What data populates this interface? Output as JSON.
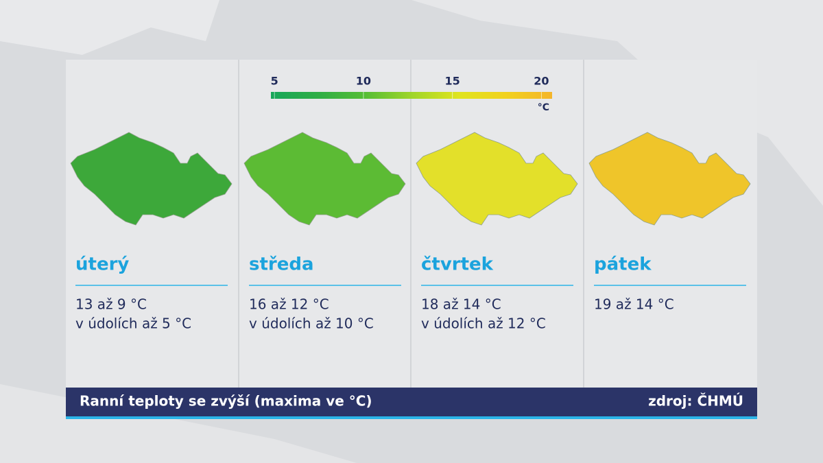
{
  "legend": {
    "lim": [
      4.8,
      20.6
    ],
    "ticks": [
      5,
      10,
      15,
      20
    ],
    "unit": "°C",
    "colors": [
      "#17a65a",
      "#2fae46",
      "#55bd35",
      "#9fd52a",
      "#dfe41f",
      "#f1d21f",
      "#f4b52a"
    ]
  },
  "panels": [
    {
      "day": "úterý",
      "lines": [
        "13 až 9 °C",
        "v údolích až 5 °C"
      ],
      "color": "#3da83a"
    },
    {
      "day": "středa",
      "lines": [
        "16 až 12 °C",
        "v údolích až 10 °C"
      ],
      "color": "#5cbb34"
    },
    {
      "day": "čtvrtek",
      "lines": [
        "18 až 14 °C",
        "v údolích až 12 °C"
      ],
      "color": "#e3e02a"
    },
    {
      "day": "pátek",
      "lines": [
        "19 až 14 °C"
      ],
      "color": "#efc52a"
    }
  ],
  "footer": {
    "title": "Ranní teploty se zvýší (maxima ve °C)",
    "source": "zdroj: ČHMÚ"
  }
}
